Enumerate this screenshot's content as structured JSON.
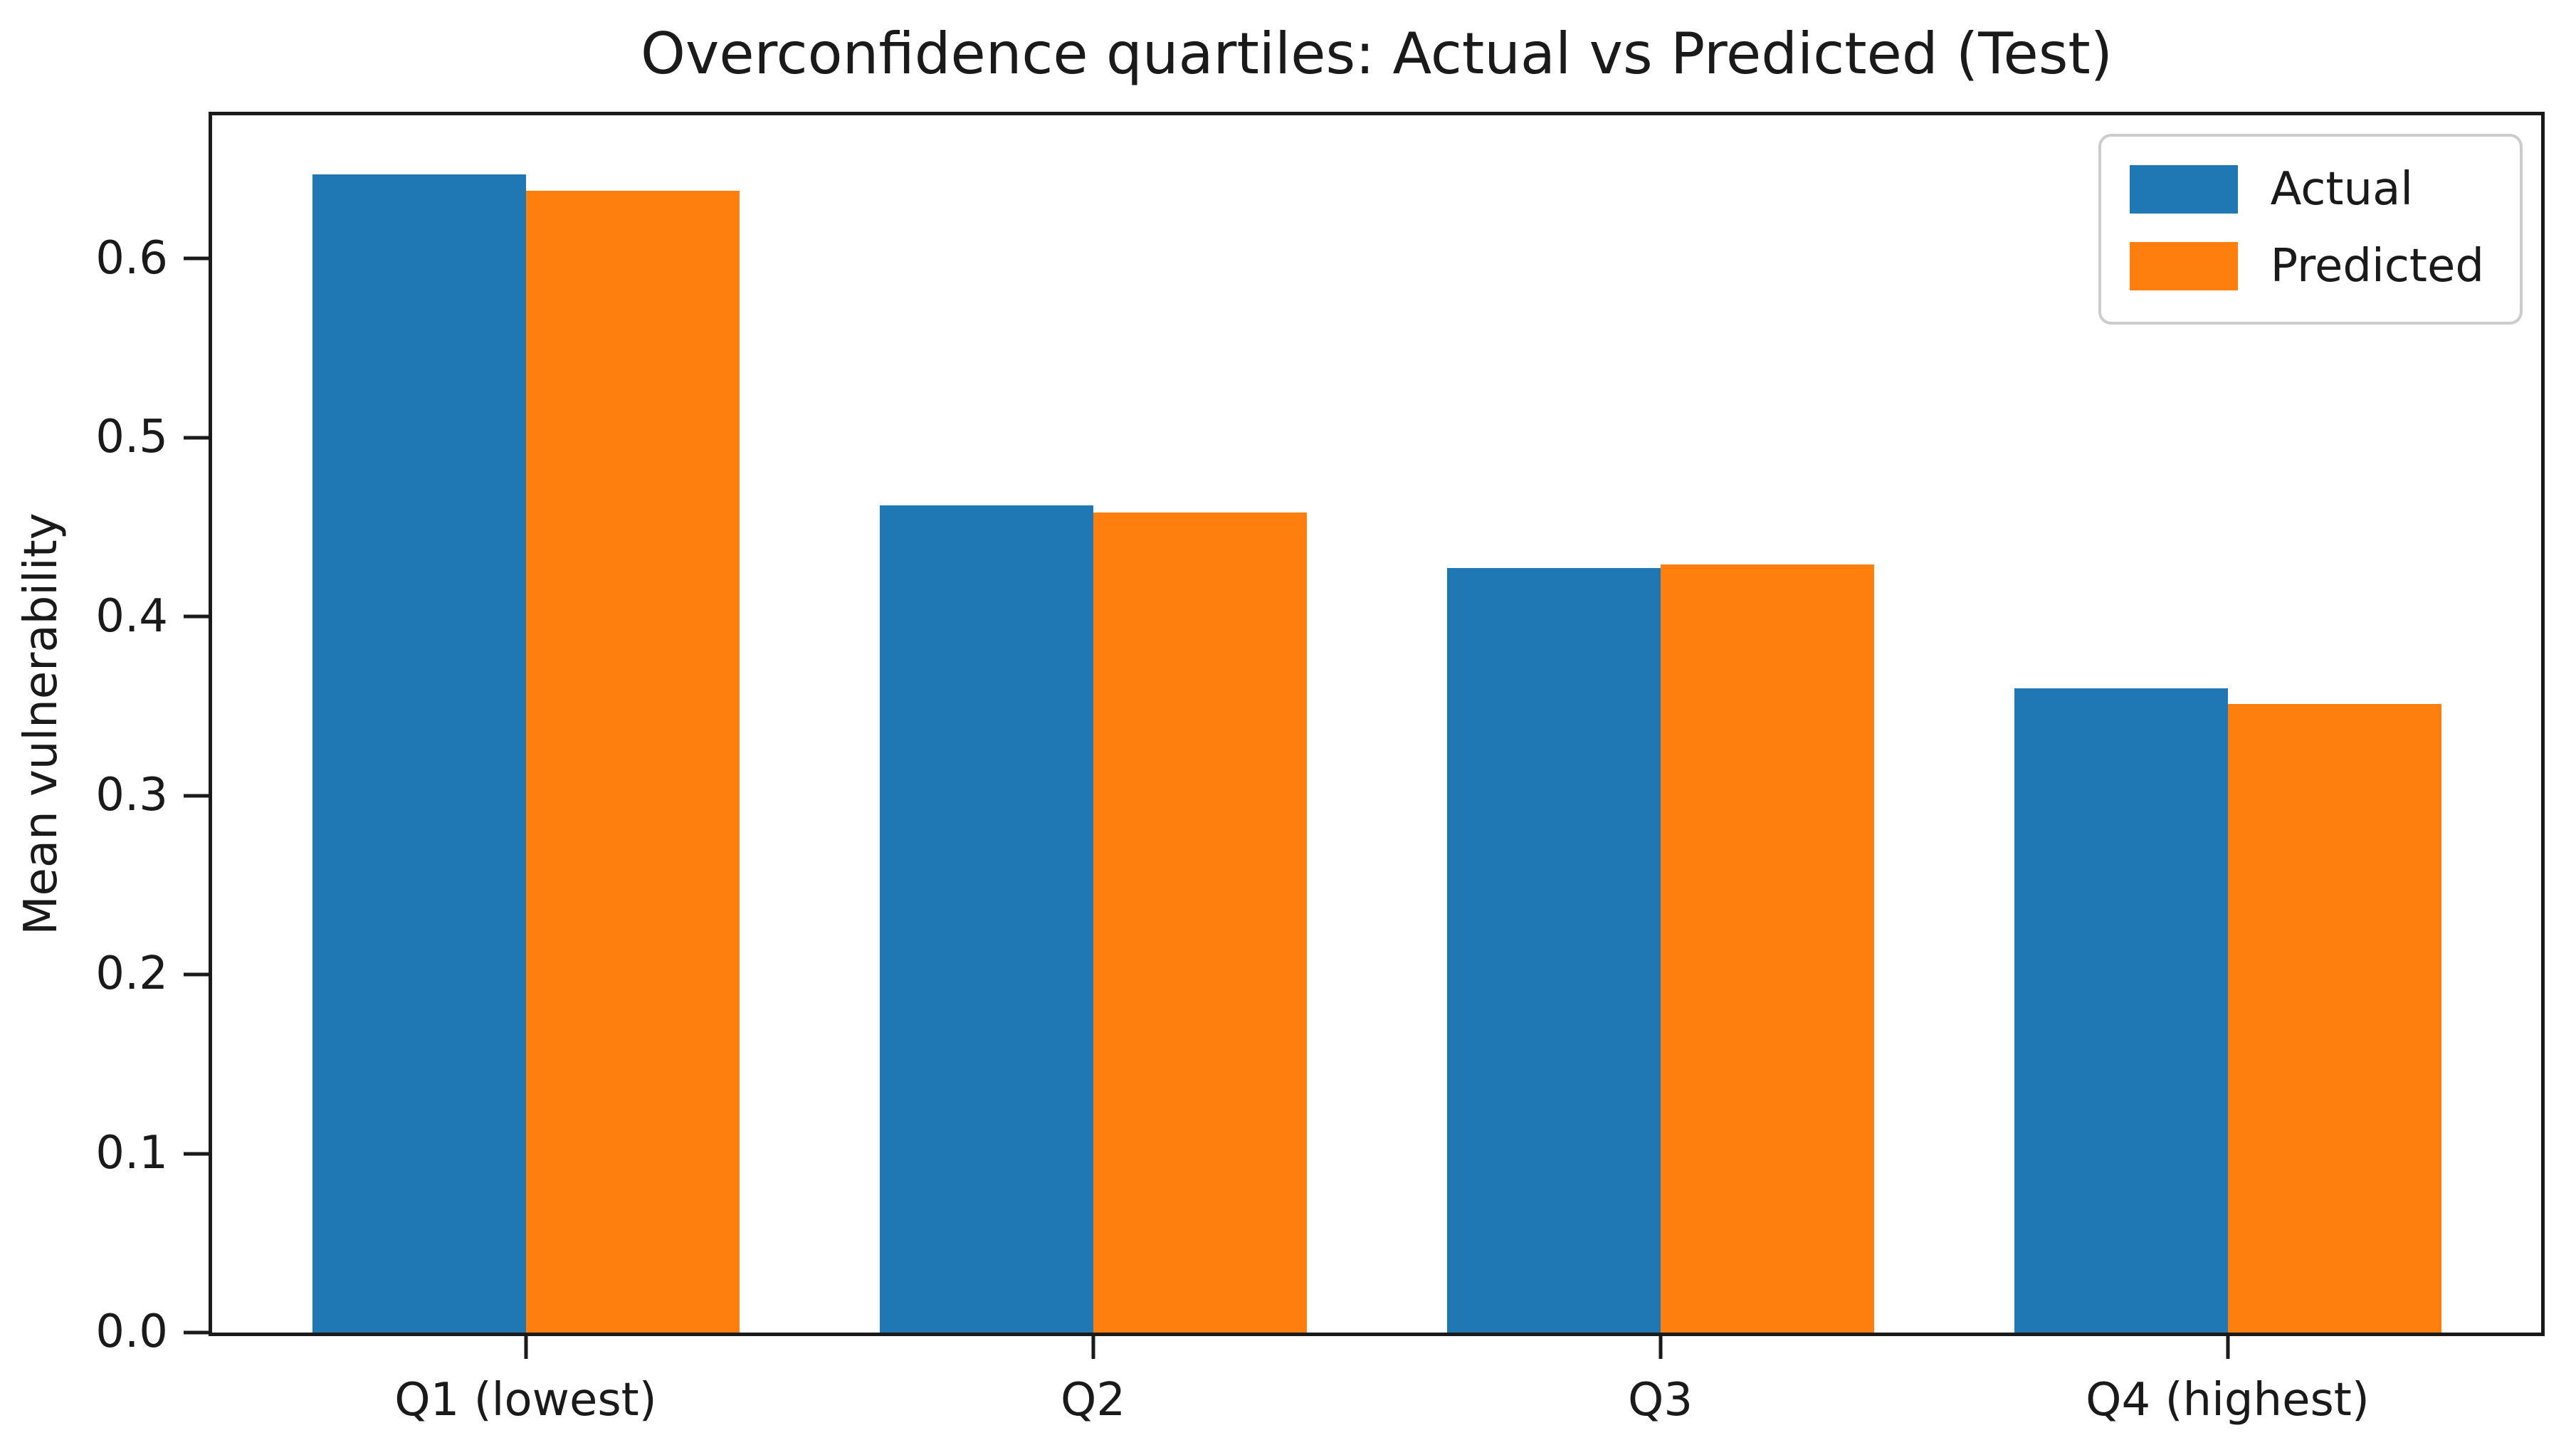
{
  "figure": {
    "background": "#ffffff",
    "axis_color": "#1a1a1a",
    "legend_border_color": "#cccccc"
  },
  "chart_data": {
    "type": "bar",
    "title": "Overconfidence quartiles: Actual vs Predicted (Test)",
    "xlabel": "",
    "ylabel": "Mean vulnerability",
    "categories": [
      "Q1 (lowest)",
      "Q2",
      "Q3",
      "Q4 (highest)"
    ],
    "series": [
      {
        "name": "Actual",
        "color": "#1f77b4",
        "values": [
          0.647,
          0.462,
          0.427,
          0.36
        ]
      },
      {
        "name": "Predicted",
        "color": "#ff7f0e",
        "values": [
          0.638,
          0.458,
          0.429,
          0.351
        ]
      }
    ],
    "ylim": [
      0,
      0.68
    ],
    "yticks": [
      0.0,
      0.1,
      0.2,
      0.3,
      0.4,
      0.5,
      0.6
    ],
    "grid": false,
    "legend": {
      "position": "upper right",
      "entries": [
        "Actual",
        "Predicted"
      ]
    }
  }
}
